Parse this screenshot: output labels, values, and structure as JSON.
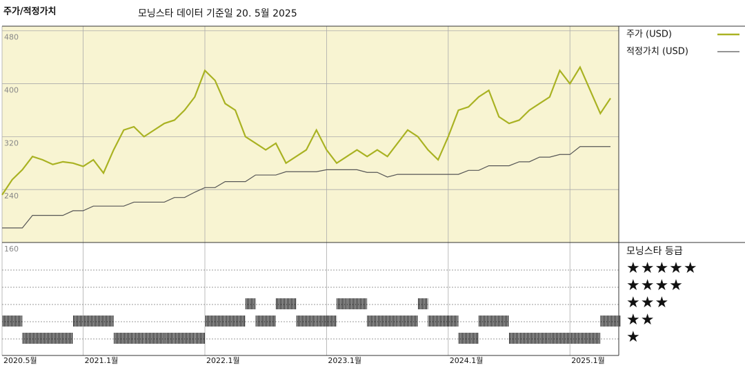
{
  "chart_data": [
    {
      "type": "line",
      "title": "주가/적정가치",
      "subtitle": "모닝스타 데이터 기준일 20. 5월 2025",
      "x": [
        "2020-05",
        "2020-06",
        "2020-07",
        "2020-08",
        "2020-09",
        "2020-10",
        "2020-11",
        "2020-12",
        "2021-01",
        "2021-02",
        "2021-03",
        "2021-04",
        "2021-05",
        "2021-06",
        "2021-07",
        "2021-08",
        "2021-09",
        "2021-10",
        "2021-11",
        "2021-12",
        "2022-01",
        "2022-02",
        "2022-03",
        "2022-04",
        "2022-05",
        "2022-06",
        "2022-07",
        "2022-08",
        "2022-09",
        "2022-10",
        "2022-11",
        "2022-12",
        "2023-01",
        "2023-02",
        "2023-03",
        "2023-04",
        "2023-05",
        "2023-06",
        "2023-07",
        "2023-08",
        "2023-09",
        "2023-10",
        "2023-11",
        "2023-12",
        "2024-01",
        "2024-02",
        "2024-03",
        "2024-04",
        "2024-05",
        "2024-06",
        "2024-07",
        "2024-08",
        "2024-09",
        "2024-10",
        "2024-11",
        "2024-12",
        "2025-01",
        "2025-02",
        "2025-03",
        "2025-04",
        "2025-05"
      ],
      "series": [
        {
          "name": "주가 (USD)",
          "color": "#a9b222",
          "values": [
            232,
            255,
            270,
            290,
            285,
            278,
            282,
            280,
            275,
            285,
            265,
            300,
            330,
            335,
            320,
            330,
            340,
            345,
            360,
            380,
            420,
            405,
            370,
            360,
            320,
            310,
            300,
            310,
            280,
            290,
            300,
            330,
            300,
            280,
            290,
            300,
            290,
            300,
            290,
            310,
            330,
            320,
            300,
            285,
            320,
            360,
            365,
            380,
            390,
            350,
            340,
            345,
            360,
            370,
            380,
            420,
            400,
            425,
            390,
            355,
            378
          ]
        },
        {
          "name": "적정가치 (USD)",
          "color": "#555555",
          "values": [
            182,
            182,
            182,
            201,
            201,
            201,
            201,
            208,
            208,
            215,
            215,
            215,
            215,
            221,
            221,
            221,
            221,
            228,
            228,
            236,
            243,
            243,
            252,
            252,
            252,
            262,
            262,
            262,
            267,
            267,
            267,
            267,
            270,
            270,
            270,
            270,
            266,
            266,
            259,
            263,
            263,
            263,
            263,
            263,
            263,
            263,
            269,
            269,
            276,
            276,
            276,
            282,
            282,
            289,
            289,
            293,
            293,
            305,
            305,
            305,
            305
          ]
        }
      ],
      "ylim": [
        160,
        487
      ],
      "yticks": [
        160,
        240,
        320,
        400,
        480
      ],
      "xticks": [
        {
          "value": "2020-05",
          "label": "2020.5월"
        },
        {
          "value": "2021-01",
          "label": "2021.1월"
        },
        {
          "value": "2022-01",
          "label": "2022.1월"
        },
        {
          "value": "2023-01",
          "label": "2023.1월"
        },
        {
          "value": "2024-01",
          "label": "2024.1월"
        },
        {
          "value": "2025-01",
          "label": "2025.1월"
        }
      ],
      "background": "#f8f4d2",
      "grid": true
    },
    {
      "type": "rating",
      "title": "모닝스타 등급",
      "color": "#111111",
      "values": [
        2,
        2,
        1,
        1,
        1,
        1,
        1,
        2,
        2,
        2,
        2,
        1,
        1,
        1,
        1,
        1,
        1,
        1,
        1,
        1,
        2,
        2,
        2,
        2,
        3,
        2,
        2,
        3,
        3,
        2,
        2,
        2,
        2,
        3,
        3,
        3,
        2,
        2,
        2,
        2,
        2,
        3,
        2,
        2,
        2,
        1,
        1,
        2,
        2,
        2,
        1,
        1,
        1,
        1,
        1,
        1,
        1,
        1,
        1,
        2,
        2
      ],
      "ylim": [
        -0.04,
        6.52
      ],
      "yticks": [
        {
          "value": 5,
          "label": "★★★★★"
        },
        {
          "value": 4,
          "label": "★★★★"
        },
        {
          "value": 3,
          "label": "★★★"
        },
        {
          "value": 2,
          "label": "★★"
        },
        {
          "value": 1,
          "label": "★"
        }
      ]
    }
  ]
}
